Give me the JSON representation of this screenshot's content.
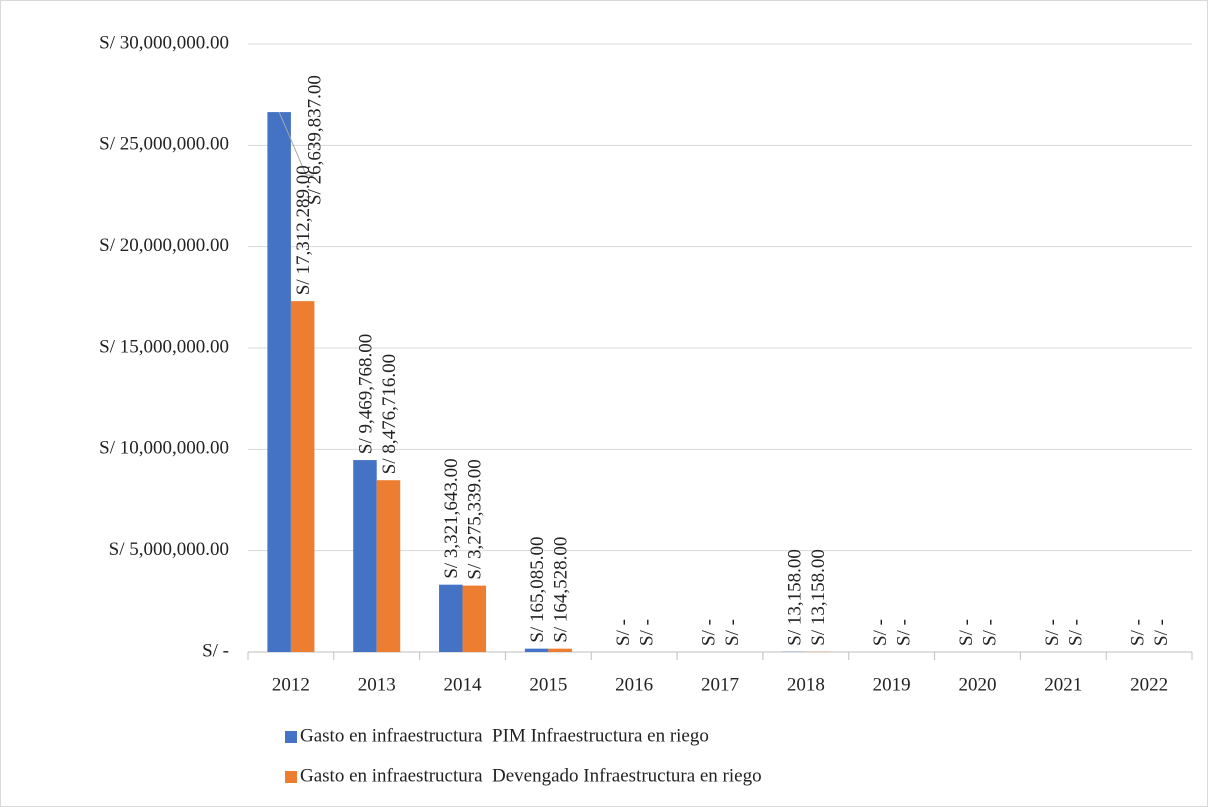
{
  "chart_data": {
    "type": "bar",
    "categories": [
      "2012",
      "2013",
      "2014",
      "2015",
      "2016",
      "2017",
      "2018",
      "2019",
      "2020",
      "2021",
      "2022"
    ],
    "series": [
      {
        "name": "Gasto en infraestructura  PIM Infraestructura en riego",
        "color": "#4472c4",
        "values": [
          26639837,
          9469768,
          3321643,
          165085,
          0,
          0,
          13158,
          0,
          0,
          0,
          0
        ],
        "value_labels": [
          "S/ 26,639,837.00",
          "S/ 9,469,768.00",
          "S/ 3,321,643.00",
          "S/ 165,085.00",
          "S/ -",
          "S/ -",
          "S/ 13,158.00",
          "S/ -",
          "S/ -",
          "S/ -",
          "S/ -"
        ]
      },
      {
        "name": "Gasto en infraestructura  Devengado Infraestructura en riego",
        "color": "#ed7d31",
        "values": [
          17312289,
          8476716,
          3275339,
          164528,
          0,
          0,
          13158,
          0,
          0,
          0,
          0
        ],
        "value_labels": [
          "S/ 17,312,289.00",
          "S/ 8,476,716.00",
          "S/ 3,275,339.00",
          "S/ 164,528.00",
          "S/ -",
          "S/ -",
          "S/ 13,158.00",
          "S/ -",
          "S/ -",
          "S/ -",
          "S/ -"
        ]
      }
    ],
    "ylim": [
      0,
      30000000
    ],
    "yticks": [
      {
        "value": 0,
        "label": "S/ -"
      },
      {
        "value": 5000000,
        "label": "S/ 5,000,000.00"
      },
      {
        "value": 10000000,
        "label": "S/ 10,000,000.00"
      },
      {
        "value": 15000000,
        "label": "S/ 15,000,000.00"
      },
      {
        "value": 20000000,
        "label": "S/ 20,000,000.00"
      },
      {
        "value": 25000000,
        "label": "S/ 25,000,000.00"
      },
      {
        "value": 30000000,
        "label": "S/ 30,000,000.00"
      }
    ],
    "grid": true
  }
}
